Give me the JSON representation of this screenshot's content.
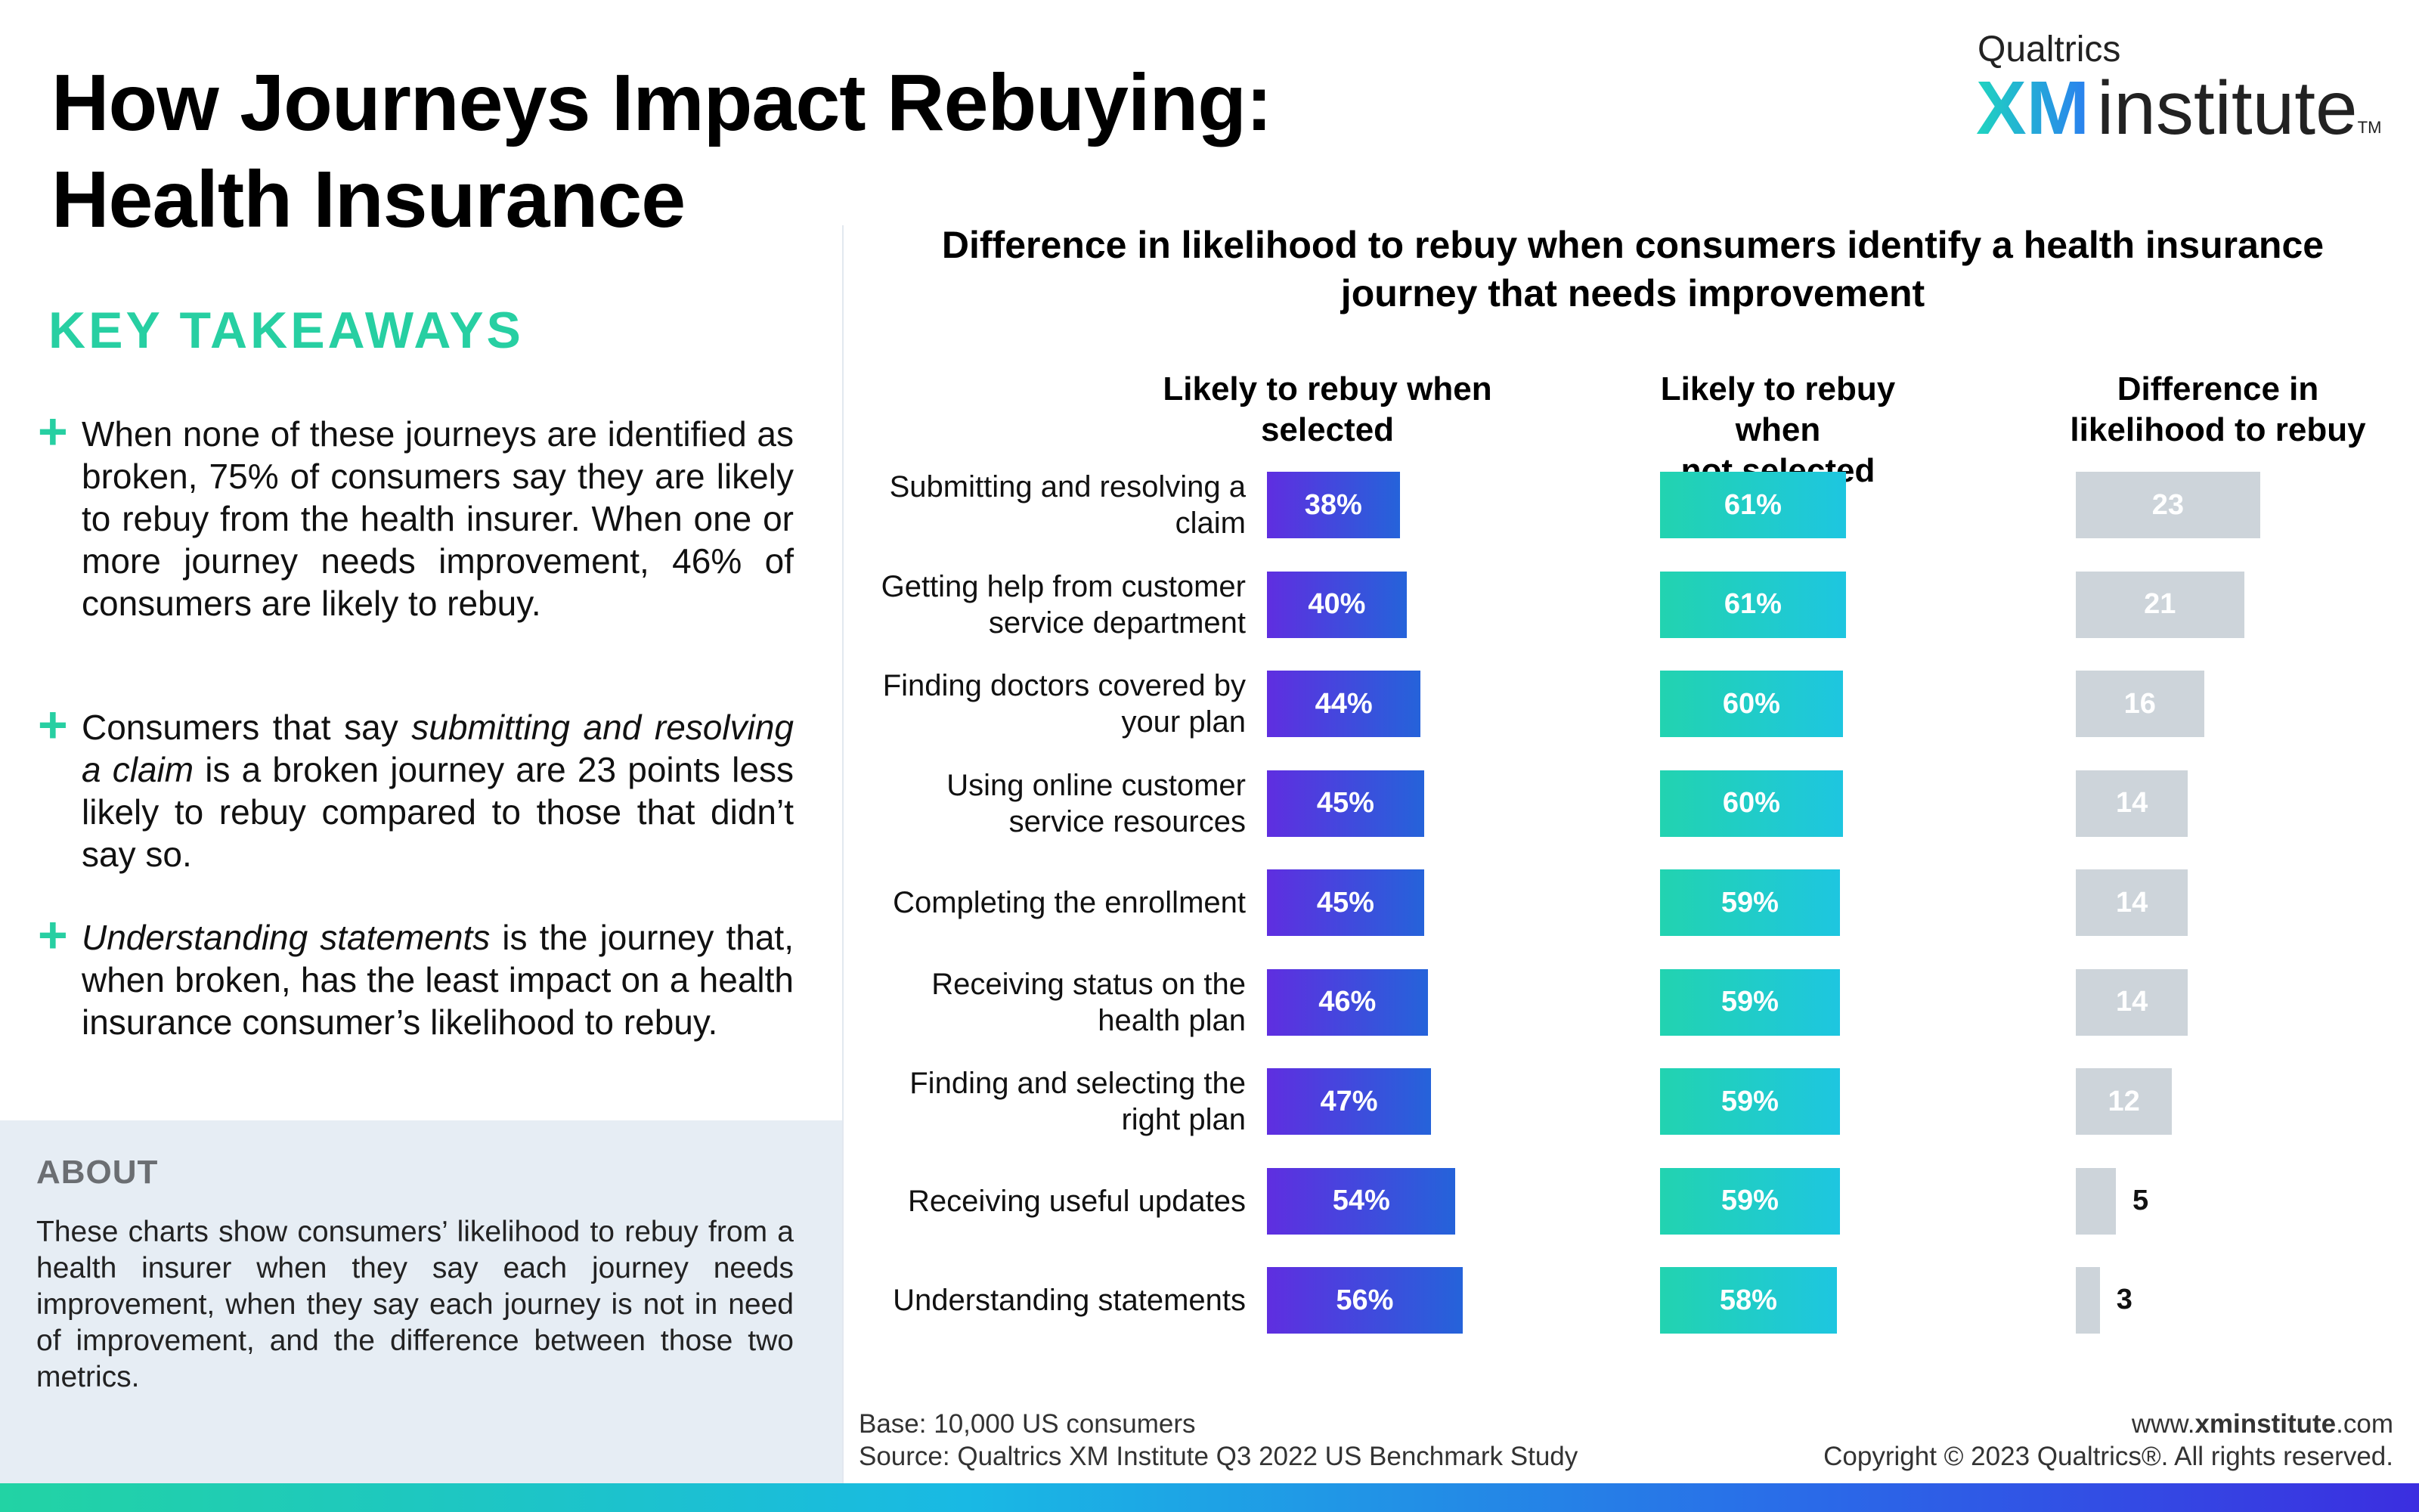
{
  "title_line1": "How Journeys Impact Rebuying:",
  "title_line2": "Health Insurance",
  "brand": {
    "top": "Qualtrics",
    "xm": "XM",
    "institute": "institute",
    "tm": "TM"
  },
  "key_takeaways": {
    "heading": "KEY TAKEAWAYS",
    "items": [
      {
        "html": "When none of these journeys are identified as broken, 75% of consumers say they are likely to rebuy from the health insurer. When one or more journey needs improvement, 46% of consumers are likely to rebuy."
      },
      {
        "html": "Consumers that say <i>submitting and resolving a claim</i> is a broken journey are 23 points less likely to rebuy compared to those that didn’t say so."
      },
      {
        "html": "<i>Understanding statements</i> is the journey that, when broken, has the least impact on a health insurance consumer’s likelihood to rebuy."
      }
    ]
  },
  "about": {
    "heading": "ABOUT",
    "text": "These charts show consumers’ likelihood to rebuy from a health insurer when they say each journey needs improvement, when they say each journey is not in need of improvement, and the difference between those two metrics."
  },
  "chart_data": {
    "type": "bar",
    "title": "Difference in likelihood to rebuy when consumers identify a health insurance journey that needs improvement",
    "categories": [
      "Submitting and resolving a claim",
      "Getting help from customer service department",
      "Finding doctors covered by your plan",
      "Using online customer service resources",
      "Completing the enrollment",
      "Receiving status on the health plan",
      "Finding and selecting the right plan",
      "Receiving useful updates",
      "Understanding statements"
    ],
    "category_lines": [
      [
        "Submitting and resolving a",
        "claim"
      ],
      [
        "Getting help from customer",
        "service department"
      ],
      [
        "Finding doctors covered by",
        "your plan"
      ],
      [
        "Using online customer",
        "service resources"
      ],
      [
        "Completing the enrollment"
      ],
      [
        "Receiving status on the",
        "health plan"
      ],
      [
        "Finding and selecting the",
        "right plan"
      ],
      [
        "Receiving useful updates"
      ],
      [
        "Understanding statements"
      ]
    ],
    "series": [
      {
        "name": "Likely to rebuy when selected",
        "name_lines": [
          "Likely to rebuy when",
          "selected"
        ],
        "values": [
          38,
          40,
          44,
          45,
          45,
          46,
          47,
          54,
          56
        ],
        "labels": [
          "38%",
          "40%",
          "44%",
          "45%",
          "45%",
          "46%",
          "47%",
          "54%",
          "56%"
        ]
      },
      {
        "name": "Likely to rebuy when not selected",
        "name_lines": [
          "Likely to rebuy when",
          "not selected"
        ],
        "values": [
          61,
          61,
          60,
          60,
          59,
          59,
          59,
          59,
          58
        ],
        "labels": [
          "61%",
          "61%",
          "60%",
          "60%",
          "59%",
          "59%",
          "59%",
          "59%",
          "58%"
        ]
      },
      {
        "name": "Difference in likelihood to rebuy",
        "name_lines": [
          "Difference in",
          "likelihood to rebuy"
        ],
        "values": [
          23,
          21,
          16,
          14,
          14,
          14,
          12,
          5,
          3
        ],
        "labels": [
          "23",
          "21",
          "16",
          "14",
          "14",
          "14",
          "12",
          "5",
          "3"
        ]
      }
    ],
    "colors": {
      "selected": "#4a3ee0",
      "not_selected": "#22d0c0",
      "difference": "#cdd4da"
    }
  },
  "footer": {
    "base": "Base: 10,000 US consumers",
    "source": "Source: Qualtrics XM Institute Q3 2022 US Benchmark Study",
    "url_prefix": "www.",
    "url_bold": "xminstitute",
    "url_suffix": ".com",
    "copyright": "Copyright © 2023 Qualtrics®. All rights reserved."
  }
}
